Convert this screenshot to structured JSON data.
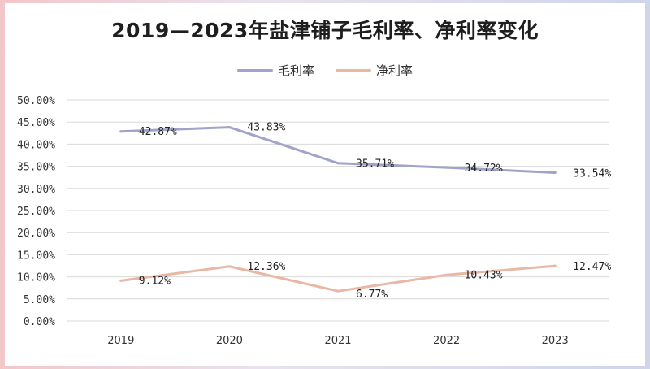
{
  "chart_data": {
    "type": "line",
    "title": "2019—2023年盐津铺子毛利率、净利率变化",
    "categories": [
      "2019",
      "2020",
      "2021",
      "2022",
      "2023"
    ],
    "series": [
      {
        "name": "毛利率",
        "color": "#a0a4c8",
        "values": [
          42.87,
          43.83,
          35.71,
          34.72,
          33.54
        ],
        "labels": [
          "42.87%",
          "43.83%",
          "35.71%",
          "34.72%",
          "33.54%"
        ]
      },
      {
        "name": "净利率",
        "color": "#e8b8a4",
        "values": [
          9.12,
          12.36,
          6.77,
          10.43,
          12.47
        ],
        "labels": [
          "9.12%",
          "12.36%",
          "6.77%",
          "10.43%",
          "12.47%"
        ]
      }
    ],
    "ylim": [
      0,
      50
    ],
    "yticks": [
      "0.00%",
      "5.00%",
      "10.00%",
      "15.00%",
      "20.00%",
      "25.00%",
      "30.00%",
      "35.00%",
      "40.00%",
      "45.00%",
      "50.00%"
    ],
    "grid": true,
    "legend_position": "top"
  }
}
